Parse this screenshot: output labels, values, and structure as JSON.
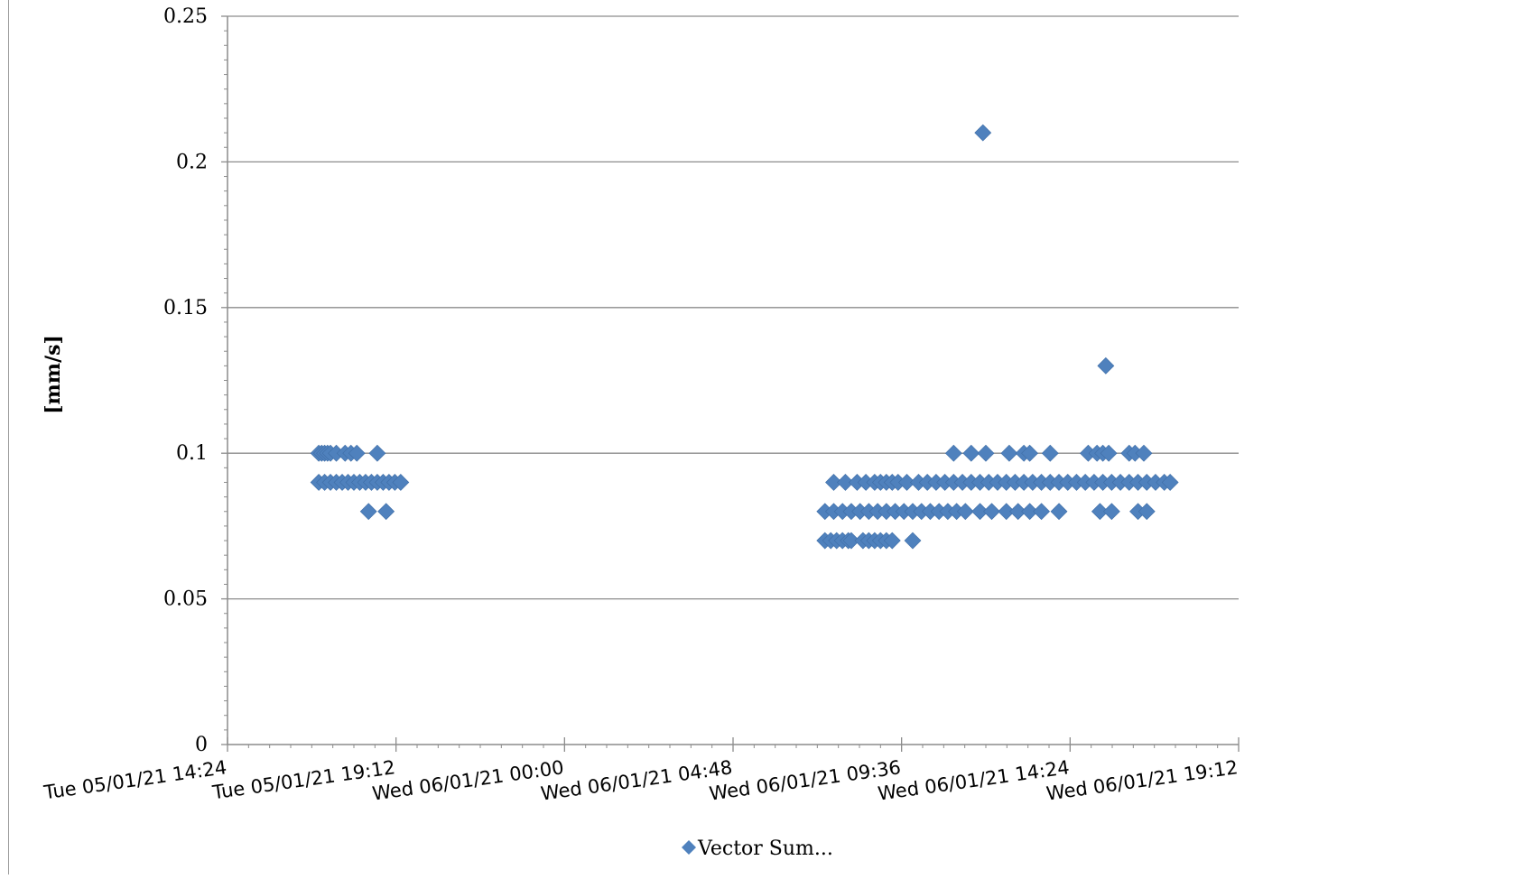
{
  "chart_data": {
    "type": "scatter",
    "title": "",
    "xlabel": "",
    "ylabel": "[mm/s]",
    "x_axis": {
      "type": "datetime",
      "min": "2021-01-05T14:24",
      "max": "2021-01-06T19:12",
      "tick_labels": [
        "Tue 05/01/21 14:24",
        "Tue 05/01/21 19:12",
        "Wed 06/01/21 00:00",
        "Wed 06/01/21 04:48",
        "Wed 06/01/21 09:36",
        "Wed 06/01/21 14:24",
        "Wed 06/01/21 19:12"
      ]
    },
    "y_axis": {
      "min": 0,
      "max": 0.25,
      "tick_labels": [
        "0",
        "0.05",
        "0.1",
        "0.15",
        "0.2",
        "0.25"
      ]
    },
    "grid": true,
    "legend": {
      "position": "bottom",
      "entries": [
        "Vector Sum..."
      ]
    },
    "series": [
      {
        "name": "Vector Sum...",
        "color": "#4F81BD",
        "marker": "diamond",
        "points": [
          [
            "2021-01-05T17:00",
            0.1
          ],
          [
            "2021-01-05T17:05",
            0.1
          ],
          [
            "2021-01-05T17:10",
            0.1
          ],
          [
            "2021-01-05T17:15",
            0.1
          ],
          [
            "2021-01-05T17:20",
            0.1
          ],
          [
            "2021-01-05T17:30",
            0.1
          ],
          [
            "2021-01-05T17:45",
            0.1
          ],
          [
            "2021-01-05T17:55",
            0.1
          ],
          [
            "2021-01-05T18:05",
            0.1
          ],
          [
            "2021-01-05T18:40",
            0.1
          ],
          [
            "2021-01-05T17:00",
            0.09
          ],
          [
            "2021-01-05T17:10",
            0.09
          ],
          [
            "2021-01-05T17:20",
            0.09
          ],
          [
            "2021-01-05T17:30",
            0.09
          ],
          [
            "2021-01-05T17:40",
            0.09
          ],
          [
            "2021-01-05T17:50",
            0.09
          ],
          [
            "2021-01-05T18:00",
            0.09
          ],
          [
            "2021-01-05T18:10",
            0.09
          ],
          [
            "2021-01-05T18:20",
            0.09
          ],
          [
            "2021-01-05T18:30",
            0.09
          ],
          [
            "2021-01-05T18:40",
            0.09
          ],
          [
            "2021-01-05T18:50",
            0.09
          ],
          [
            "2021-01-05T19:00",
            0.09
          ],
          [
            "2021-01-05T19:10",
            0.09
          ],
          [
            "2021-01-05T19:20",
            0.09
          ],
          [
            "2021-01-05T18:25",
            0.08
          ],
          [
            "2021-01-05T18:55",
            0.08
          ],
          [
            "2021-01-06T07:25",
            0.07
          ],
          [
            "2021-01-06T07:35",
            0.07
          ],
          [
            "2021-01-06T07:45",
            0.07
          ],
          [
            "2021-01-06T07:55",
            0.07
          ],
          [
            "2021-01-06T08:05",
            0.07
          ],
          [
            "2021-01-06T08:10",
            0.07
          ],
          [
            "2021-01-06T08:30",
            0.07
          ],
          [
            "2021-01-06T08:40",
            0.07
          ],
          [
            "2021-01-06T08:50",
            0.07
          ],
          [
            "2021-01-06T09:00",
            0.07
          ],
          [
            "2021-01-06T09:10",
            0.07
          ],
          [
            "2021-01-06T09:20",
            0.07
          ],
          [
            "2021-01-06T09:55",
            0.07
          ],
          [
            "2021-01-06T07:25",
            0.08
          ],
          [
            "2021-01-06T07:40",
            0.08
          ],
          [
            "2021-01-06T07:55",
            0.08
          ],
          [
            "2021-01-06T08:10",
            0.08
          ],
          [
            "2021-01-06T08:25",
            0.08
          ],
          [
            "2021-01-06T08:40",
            0.08
          ],
          [
            "2021-01-06T08:55",
            0.08
          ],
          [
            "2021-01-06T09:10",
            0.08
          ],
          [
            "2021-01-06T09:25",
            0.08
          ],
          [
            "2021-01-06T09:40",
            0.08
          ],
          [
            "2021-01-06T09:55",
            0.08
          ],
          [
            "2021-01-06T10:10",
            0.08
          ],
          [
            "2021-01-06T10:25",
            0.08
          ],
          [
            "2021-01-06T10:40",
            0.08
          ],
          [
            "2021-01-06T10:55",
            0.08
          ],
          [
            "2021-01-06T11:10",
            0.08
          ],
          [
            "2021-01-06T11:25",
            0.08
          ],
          [
            "2021-01-06T11:50",
            0.08
          ],
          [
            "2021-01-06T12:10",
            0.08
          ],
          [
            "2021-01-06T12:35",
            0.08
          ],
          [
            "2021-01-06T12:55",
            0.08
          ],
          [
            "2021-01-06T13:15",
            0.08
          ],
          [
            "2021-01-06T13:35",
            0.08
          ],
          [
            "2021-01-06T14:05",
            0.08
          ],
          [
            "2021-01-06T15:15",
            0.08
          ],
          [
            "2021-01-06T15:35",
            0.08
          ],
          [
            "2021-01-06T16:20",
            0.08
          ],
          [
            "2021-01-06T16:35",
            0.08
          ],
          [
            "2021-01-06T07:40",
            0.09
          ],
          [
            "2021-01-06T08:00",
            0.09
          ],
          [
            "2021-01-06T08:20",
            0.09
          ],
          [
            "2021-01-06T08:35",
            0.09
          ],
          [
            "2021-01-06T08:50",
            0.09
          ],
          [
            "2021-01-06T09:00",
            0.09
          ],
          [
            "2021-01-06T09:10",
            0.09
          ],
          [
            "2021-01-06T09:20",
            0.09
          ],
          [
            "2021-01-06T09:30",
            0.09
          ],
          [
            "2021-01-06T09:45",
            0.09
          ],
          [
            "2021-01-06T10:05",
            0.09
          ],
          [
            "2021-01-06T10:20",
            0.09
          ],
          [
            "2021-01-06T10:35",
            0.09
          ],
          [
            "2021-01-06T10:50",
            0.09
          ],
          [
            "2021-01-06T11:05",
            0.09
          ],
          [
            "2021-01-06T11:20",
            0.09
          ],
          [
            "2021-01-06T11:35",
            0.09
          ],
          [
            "2021-01-06T11:50",
            0.09
          ],
          [
            "2021-01-06T12:05",
            0.09
          ],
          [
            "2021-01-06T12:20",
            0.09
          ],
          [
            "2021-01-06T12:35",
            0.09
          ],
          [
            "2021-01-06T12:50",
            0.09
          ],
          [
            "2021-01-06T13:05",
            0.09
          ],
          [
            "2021-01-06T13:20",
            0.09
          ],
          [
            "2021-01-06T13:35",
            0.09
          ],
          [
            "2021-01-06T13:50",
            0.09
          ],
          [
            "2021-01-06T14:05",
            0.09
          ],
          [
            "2021-01-06T14:20",
            0.09
          ],
          [
            "2021-01-06T14:35",
            0.09
          ],
          [
            "2021-01-06T14:50",
            0.09
          ],
          [
            "2021-01-06T15:05",
            0.09
          ],
          [
            "2021-01-06T15:20",
            0.09
          ],
          [
            "2021-01-06T15:35",
            0.09
          ],
          [
            "2021-01-06T15:50",
            0.09
          ],
          [
            "2021-01-06T16:05",
            0.09
          ],
          [
            "2021-01-06T16:20",
            0.09
          ],
          [
            "2021-01-06T16:35",
            0.09
          ],
          [
            "2021-01-06T16:50",
            0.09
          ],
          [
            "2021-01-06T17:05",
            0.09
          ],
          [
            "2021-01-06T17:15",
            0.09
          ],
          [
            "2021-01-06T11:05",
            0.1
          ],
          [
            "2021-01-06T11:35",
            0.1
          ],
          [
            "2021-01-06T12:00",
            0.1
          ],
          [
            "2021-01-06T12:40",
            0.1
          ],
          [
            "2021-01-06T13:05",
            0.1
          ],
          [
            "2021-01-06T13:15",
            0.1
          ],
          [
            "2021-01-06T13:50",
            0.1
          ],
          [
            "2021-01-06T14:55",
            0.1
          ],
          [
            "2021-01-06T15:10",
            0.1
          ],
          [
            "2021-01-06T15:20",
            0.1
          ],
          [
            "2021-01-06T15:30",
            0.1
          ],
          [
            "2021-01-06T16:05",
            0.1
          ],
          [
            "2021-01-06T16:15",
            0.1
          ],
          [
            "2021-01-06T16:30",
            0.1
          ],
          [
            "2021-01-06T15:25",
            0.13
          ],
          [
            "2021-01-06T11:55",
            0.21
          ]
        ]
      }
    ]
  }
}
